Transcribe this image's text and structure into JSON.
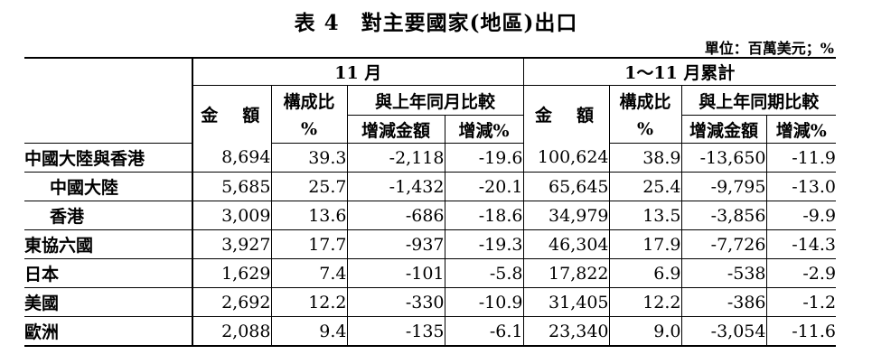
{
  "title": "表 4　對主要國家(地區)出口",
  "unit": "單位：百萬美元；%",
  "headers": {
    "month": "11 月",
    "cumulative": "1～11 月累計",
    "amount": "金　額",
    "share": "構成比",
    "share_unit": "%",
    "compare_month": "與上年同月比較",
    "compare_period": "與上年同期比較",
    "diff_amount": "增減金額",
    "diff_pct": "增減%"
  },
  "rows": [
    {
      "name": "中國大陸與香港",
      "sub": false,
      "v": [
        "8,694",
        "39.3",
        "-2,118",
        "-19.6",
        "100,624",
        "38.9",
        "-13,650",
        "-11.9"
      ]
    },
    {
      "name": "中國大陸",
      "sub": true,
      "v": [
        "5,685",
        "25.7",
        "-1,432",
        "-20.1",
        "65,645",
        "25.4",
        "-9,795",
        "-13.0"
      ]
    },
    {
      "name": "香港",
      "sub": true,
      "v": [
        "3,009",
        "13.6",
        "-686",
        "-18.6",
        "34,979",
        "13.5",
        "-3,856",
        "-9.9"
      ]
    },
    {
      "name": "東協六國",
      "sub": false,
      "v": [
        "3,927",
        "17.7",
        "-937",
        "-19.3",
        "46,304",
        "17.9",
        "-7,726",
        "-14.3"
      ]
    },
    {
      "name": "日本",
      "sub": false,
      "v": [
        "1,629",
        "7.4",
        "-101",
        "-5.8",
        "17,822",
        "6.9",
        "-538",
        "-2.9"
      ]
    },
    {
      "name": "美國",
      "sub": false,
      "v": [
        "2,692",
        "12.2",
        "-330",
        "-10.9",
        "31,405",
        "12.2",
        "-386",
        "-1.2"
      ]
    },
    {
      "name": "歐洲",
      "sub": false,
      "v": [
        "2,088",
        "9.4",
        "-135",
        "-6.1",
        "23,340",
        "9.0",
        "-3,054",
        "-11.6"
      ]
    }
  ]
}
